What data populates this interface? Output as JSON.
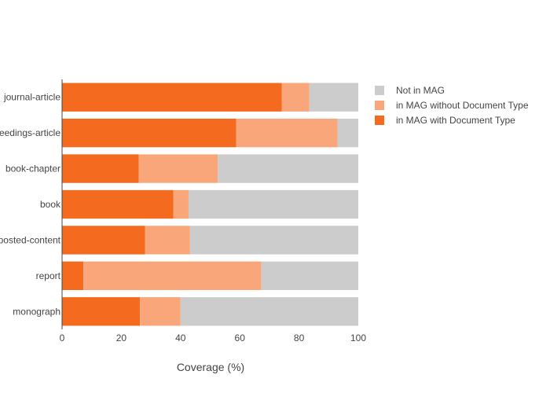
{
  "chart_data": {
    "type": "bar",
    "orientation": "horizontal",
    "stacked": true,
    "categories": [
      "journal-article",
      "proceedings-article",
      "book-chapter",
      "book",
      "posted-content",
      "report",
      "monograph"
    ],
    "series": [
      {
        "name": "in MAG with Document Type",
        "color": "#f46a1f",
        "values": [
          74.2,
          58.8,
          25.9,
          37.6,
          28.0,
          7.2,
          26.3
        ]
      },
      {
        "name": "in MAG without Document Type",
        "color": "#f9a77a",
        "values": [
          9.3,
          34.2,
          26.7,
          5.1,
          15.2,
          60.1,
          13.7
        ]
      },
      {
        "name": "Not in MAG",
        "color": "#cccccc",
        "values": [
          16.5,
          7.0,
          47.4,
          57.3,
          56.8,
          32.7,
          60.0
        ]
      }
    ],
    "xlabel": "Coverage (%)",
    "ylabel": "",
    "xlim": [
      0,
      100
    ],
    "xticks": [
      0,
      20,
      40,
      60,
      80,
      100
    ],
    "grid": false,
    "legend_position": "top-right",
    "legend_order": [
      "Not in MAG",
      "in MAG without Document Type",
      "in MAG with Document Type"
    ]
  }
}
